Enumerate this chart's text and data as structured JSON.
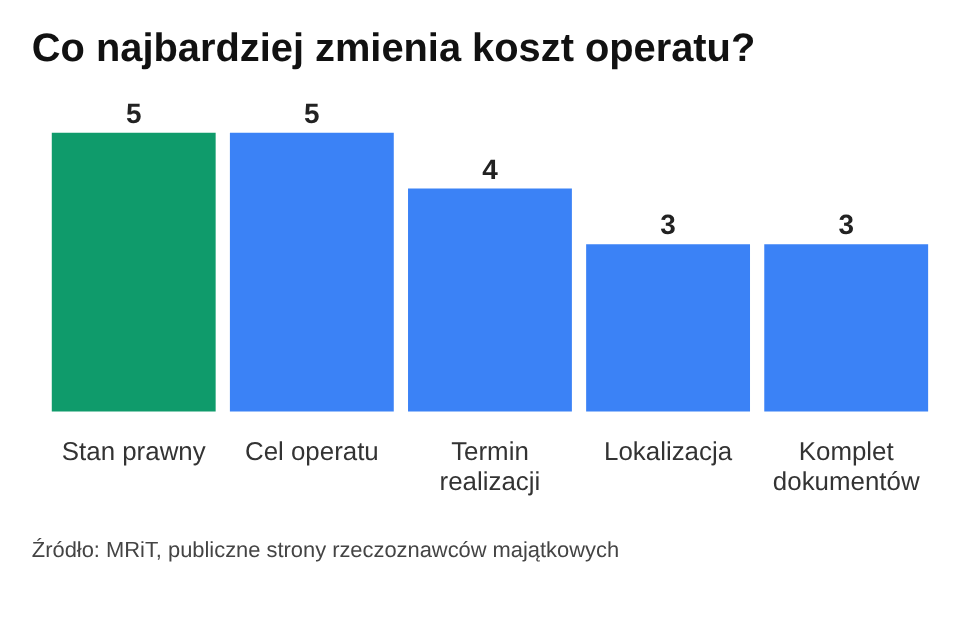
{
  "chart_data": {
    "type": "bar",
    "title": "Co najbardziej zmienia koszt operatu?",
    "categories": [
      "Stan prawny",
      "Cel operatu",
      "Termin realizacji",
      "Lokalizacja",
      "Komplet dokumentów"
    ],
    "values": [
      5,
      5,
      4,
      3,
      3
    ],
    "colors": [
      "#0f9b6b",
      "#3b82f6",
      "#3b82f6",
      "#3b82f6",
      "#3b82f6"
    ],
    "data_labels": true,
    "annotations": [
      "Źródło: MRiT, publiczne strony rzeczoznawców majątkowych"
    ]
  }
}
